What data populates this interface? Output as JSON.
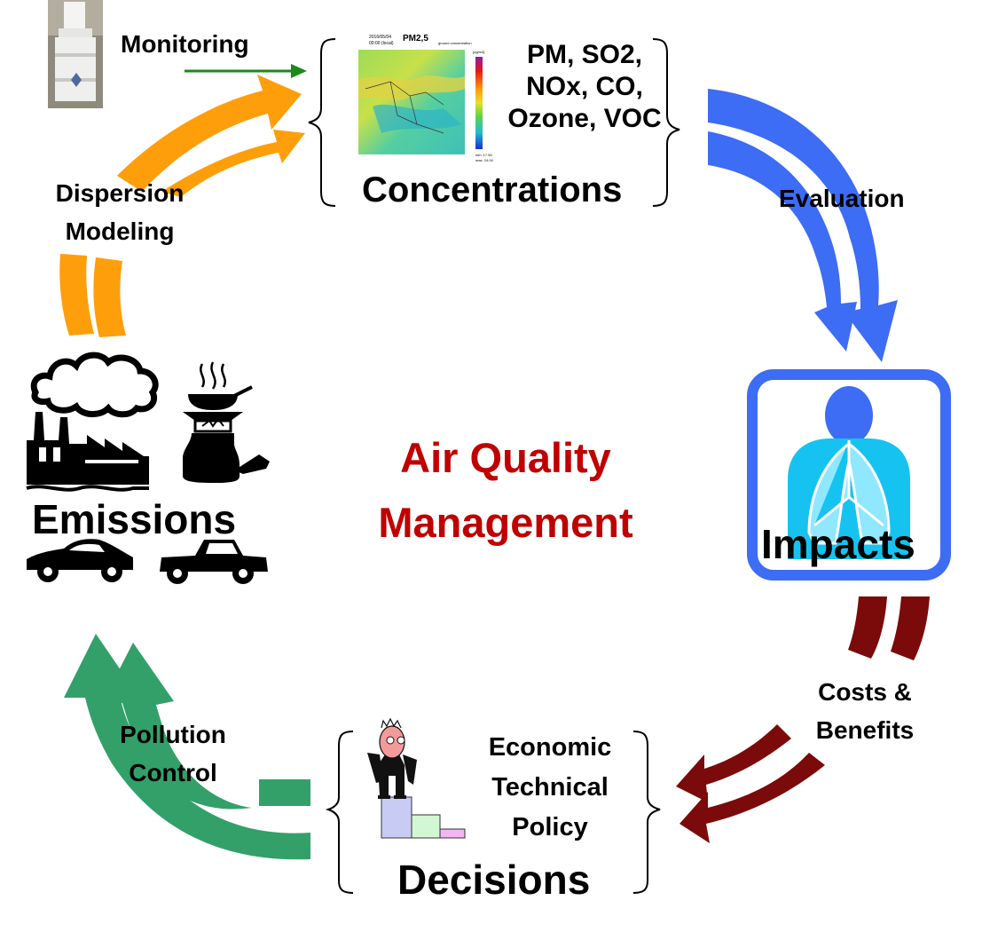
{
  "title": {
    "line1": "Air Quality",
    "line2": "Management",
    "color": "#c00000"
  },
  "stages": {
    "concentrations": "Concentrations",
    "impacts": "Impacts",
    "decisions": "Decisions",
    "emissions": "Emissions"
  },
  "pollutants": [
    "PM, SO2,",
    "NOx, CO,",
    "Ozone, VOC"
  ],
  "decision_factors": [
    "Economic",
    "Technical",
    "Policy"
  ],
  "transitions": {
    "monitoring": "Monitoring",
    "dispersion": [
      "Dispersion",
      "Modeling"
    ],
    "evaluation": "Evaluation",
    "costs": [
      "Costs &",
      "Benefits"
    ],
    "pollution": [
      "Pollution",
      "Control"
    ]
  },
  "map": {
    "title": "PM2,5",
    "date_line1": "2016/05/04",
    "date_line2": "00:00 (local)",
    "subtitle": "ground concentration",
    "unit": "[ug/m3]",
    "min_label": "min: 17.50",
    "max_label": "max: 24.00"
  },
  "colors": {
    "monitoring_arrow": "#1a8a1a",
    "dispersion_arrow": "#ff9e0b",
    "evaluation_arrow": "#3d6cf5",
    "impacts_frame": "#3d6cf5",
    "impacts_body": "#16c3f0",
    "costs_arrow": "#7b0a0a",
    "control_arrow": "#33a06a"
  },
  "icons": [
    "air-sampler-icon",
    "concentration-map",
    "human-lungs-icon",
    "manager-on-podium-icon",
    "factory-smoke-icon",
    "cookstove-icon",
    "car-icon",
    "pickup-truck-icon"
  ]
}
